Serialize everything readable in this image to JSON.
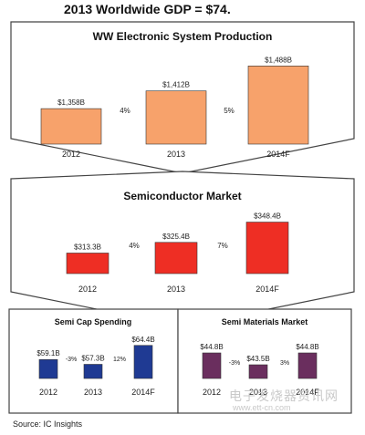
{
  "page_title": "2013 Worldwide GDP = $74.",
  "source": "Source:  IC Insights",
  "watermark": {
    "brand": "电子发烧器资讯网",
    "url": "www.ett-cn.com"
  },
  "chart_data": [
    {
      "type": "bar",
      "title": "WW Electronic System Production",
      "categories": [
        "2012",
        "2013",
        "2014F"
      ],
      "values": [
        1358,
        1412,
        1488
      ],
      "value_labels": [
        "$1,358B",
        "$1,412B",
        "$1,488B"
      ],
      "growth_labels": [
        "4%",
        "5%"
      ],
      "color": "#F7A26B",
      "ylim": [
        1250,
        1500
      ]
    },
    {
      "type": "bar",
      "title": "Semiconductor Market",
      "categories": [
        "2012",
        "2013",
        "2014F"
      ],
      "values": [
        313.3,
        325.4,
        348.4
      ],
      "value_labels": [
        "$313.3B",
        "$325.4B",
        "$348.4B"
      ],
      "growth_labels": [
        "4%",
        "7%"
      ],
      "color": "#EE2E24",
      "ylim": [
        290,
        350
      ]
    },
    {
      "type": "bar",
      "title": "Semi Cap Spending",
      "categories": [
        "2012",
        "2013",
        "2014F"
      ],
      "values": [
        59.1,
        57.3,
        64.4
      ],
      "value_labels": [
        "$59.1B",
        "$57.3B",
        "$64.4B"
      ],
      "growth_labels": [
        "-3%",
        "12%"
      ],
      "color": "#1F3A93",
      "ylim": [
        52,
        65
      ]
    },
    {
      "type": "bar",
      "title": "Semi Materials Market",
      "categories": [
        "2012",
        "2013",
        "2014F"
      ],
      "values": [
        44.8,
        43.5,
        44.8
      ],
      "value_labels": [
        "$44.8B",
        "$43.5B",
        "$44.8B"
      ],
      "growth_labels": [
        "-3%",
        "3%"
      ],
      "color": "#6A2E5E",
      "ylim": [
        42,
        45
      ]
    }
  ]
}
